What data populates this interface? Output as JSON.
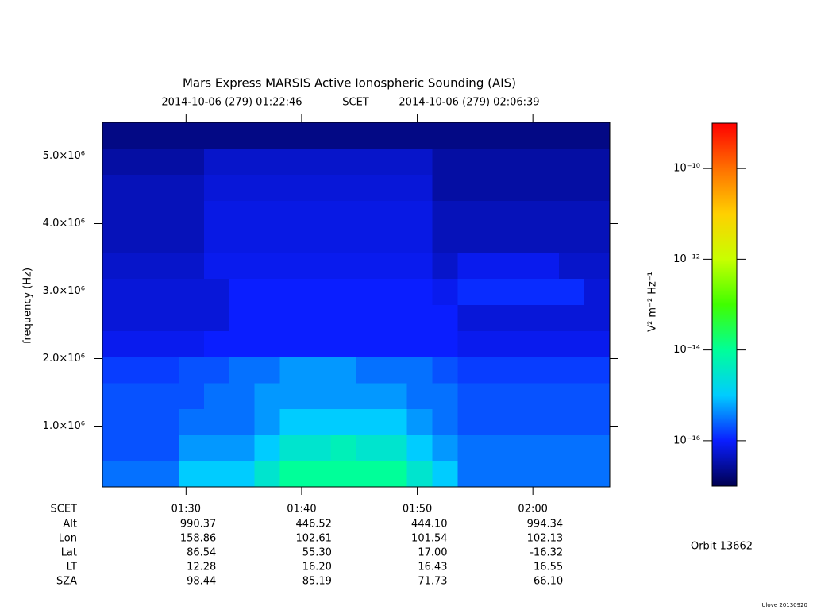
{
  "chart_data": {
    "type": "heatmap",
    "title": "Mars Express MARSIS Active Ionospheric Sounding (AIS)",
    "start_time": "2014-10-06 (279) 01:22:46",
    "time_label": "SCET",
    "end_time": "2014-10-06 (279) 02:06:39",
    "ylabel": "frequency (Hz)",
    "xlim": [
      "01:22:46",
      "02:06:39"
    ],
    "xticks": [
      "01:30",
      "01:40",
      "01:50",
      "02:00"
    ],
    "ylim": [
      100000,
      5500000
    ],
    "yticks": [
      {
        "value": 1000000,
        "label": "1.0×10⁶"
      },
      {
        "value": 2000000,
        "label": "2.0×10⁶"
      },
      {
        "value": 3000000,
        "label": "3.0×10⁶"
      },
      {
        "value": 4000000,
        "label": "4.0×10⁶"
      },
      {
        "value": 5000000,
        "label": "5.0×10⁶"
      }
    ],
    "colorbar_label": "V² m⁻² Hz⁻¹",
    "clim": [
      1e-17,
      1e-09
    ],
    "color_scale": "log",
    "cticks": [
      {
        "value": 1e-16,
        "label": "10⁻¹⁶"
      },
      {
        "value": 1e-14,
        "label": "10⁻¹⁴"
      },
      {
        "value": 1e-12,
        "label": "10⁻¹²"
      },
      {
        "value": 1e-10,
        "label": "10⁻¹⁰"
      }
    ],
    "colormap": [
      "#000050",
      "#0a1eff",
      "#00ccff",
      "#00ff99",
      "#40ff00",
      "#c8ff00",
      "#ffd000",
      "#ff7000",
      "#ff0000"
    ],
    "z": [
      [
        3e-16,
        3e-16,
        3e-16,
        1e-15,
        1e-15,
        1e-15,
        3e-15,
        1e-14,
        1e-14,
        1e-14,
        1e-14,
        1e-14,
        3e-15,
        1e-15,
        3e-16,
        3e-16,
        3e-16,
        3e-16,
        3e-16,
        3e-16
      ],
      [
        2e-16,
        2e-16,
        2e-16,
        5e-16,
        5e-16,
        5e-16,
        1e-15,
        3e-15,
        3e-15,
        5e-15,
        3e-15,
        3e-15,
        1e-15,
        5e-16,
        3e-16,
        3e-16,
        3e-16,
        3e-16,
        3e-16,
        3e-16
      ],
      [
        2e-16,
        2e-16,
        2e-16,
        3e-16,
        3e-16,
        3e-16,
        5e-16,
        1e-15,
        1e-15,
        1e-15,
        1e-15,
        1e-15,
        5e-16,
        3e-16,
        2e-16,
        2e-16,
        2e-16,
        2e-16,
        2e-16,
        2e-16
      ],
      [
        2e-16,
        2e-16,
        2e-16,
        2e-16,
        3e-16,
        3e-16,
        5e-16,
        5e-16,
        5e-16,
        5e-16,
        5e-16,
        5e-16,
        3e-16,
        3e-16,
        2e-16,
        2e-16,
        2e-16,
        2e-16,
        2e-16,
        2e-16
      ],
      [
        1.5e-16,
        1.5e-16,
        1.5e-16,
        2e-16,
        2e-16,
        3e-16,
        3e-16,
        5e-16,
        5e-16,
        5e-16,
        3e-16,
        3e-16,
        3e-16,
        2e-16,
        1.5e-16,
        1.5e-16,
        1.5e-16,
        1.5e-16,
        1.5e-16,
        1.5e-16
      ],
      [
        8e-17,
        8e-17,
        8e-17,
        8e-17,
        1e-16,
        1e-16,
        1e-16,
        1e-16,
        1e-16,
        1e-16,
        1e-16,
        1e-16,
        1e-16,
        1e-16,
        8e-17,
        8e-17,
        8e-17,
        8e-17,
        8e-17,
        8e-17
      ],
      [
        6e-17,
        6e-17,
        6e-17,
        6e-17,
        6e-17,
        1e-16,
        1e-16,
        1e-16,
        1e-16,
        1e-16,
        1e-16,
        1e-16,
        1e-16,
        1e-16,
        6e-17,
        6e-17,
        6e-17,
        6e-17,
        6e-17,
        6e-17
      ],
      [
        6e-17,
        6e-17,
        6e-17,
        6e-17,
        6e-17,
        1e-16,
        1e-16,
        1e-16,
        1e-16,
        1e-16,
        1e-16,
        1e-16,
        1e-16,
        8e-17,
        1.2e-16,
        1.2e-16,
        1.2e-16,
        1.2e-16,
        1.2e-16,
        6e-17
      ],
      [
        5e-17,
        5e-17,
        5e-17,
        5e-17,
        8e-17,
        8e-17,
        8e-17,
        8e-17,
        8e-17,
        8e-17,
        8e-17,
        8e-17,
        8e-17,
        5e-17,
        8e-17,
        8e-17,
        8e-17,
        8e-17,
        5e-17,
        5e-17
      ],
      [
        4e-17,
        4e-17,
        4e-17,
        4e-17,
        7e-17,
        7e-17,
        7e-17,
        7e-17,
        7e-17,
        7e-17,
        7e-17,
        7e-17,
        7e-17,
        4e-17,
        4e-17,
        4e-17,
        4e-17,
        4e-17,
        4e-17,
        4e-17
      ],
      [
        4e-17,
        4e-17,
        4e-17,
        4e-17,
        7e-17,
        7e-17,
        7e-17,
        7e-17,
        7e-17,
        7e-17,
        7e-17,
        7e-17,
        7e-17,
        4e-17,
        4e-17,
        4e-17,
        4e-17,
        4e-17,
        4e-17,
        4e-17
      ],
      [
        4e-17,
        4e-17,
        4e-17,
        4e-17,
        6e-17,
        6e-17,
        6e-17,
        6e-17,
        6e-17,
        6e-17,
        6e-17,
        6e-17,
        6e-17,
        3e-17,
        3e-17,
        3e-17,
        3e-17,
        3e-17,
        3e-17,
        3e-17
      ],
      [
        3e-17,
        3e-17,
        3e-17,
        3e-17,
        5e-17,
        5e-17,
        5e-17,
        5e-17,
        5e-17,
        5e-17,
        5e-17,
        5e-17,
        5e-17,
        3e-17,
        3e-17,
        3e-17,
        3e-17,
        3e-17,
        3e-17,
        3e-17
      ],
      [
        2e-17,
        2e-17,
        2e-17,
        2e-17,
        2e-17,
        2e-17,
        2e-17,
        2e-17,
        2e-17,
        2e-17,
        2e-17,
        2e-17,
        2e-17,
        2e-17,
        2e-17,
        2e-17,
        2e-17,
        2e-17,
        2e-17,
        2e-17
      ]
    ]
  },
  "ephemeris": {
    "rows": [
      {
        "label": "Alt",
        "values": [
          "990.37",
          "446.52",
          "444.10",
          "994.34"
        ]
      },
      {
        "label": "Lon",
        "values": [
          "158.86",
          "102.61",
          "101.54",
          "102.13"
        ]
      },
      {
        "label": "Lat",
        "values": [
          "86.54",
          "55.30",
          "17.00",
          "-16.32"
        ]
      },
      {
        "label": "LT",
        "values": [
          "12.28",
          "16.20",
          "16.43",
          "16.55"
        ]
      },
      {
        "label": "SZA",
        "values": [
          "98.44",
          "85.19",
          "71.73",
          "66.10"
        ]
      }
    ]
  },
  "orbit": "Orbit 13662",
  "footer": "Ulove 20130920"
}
